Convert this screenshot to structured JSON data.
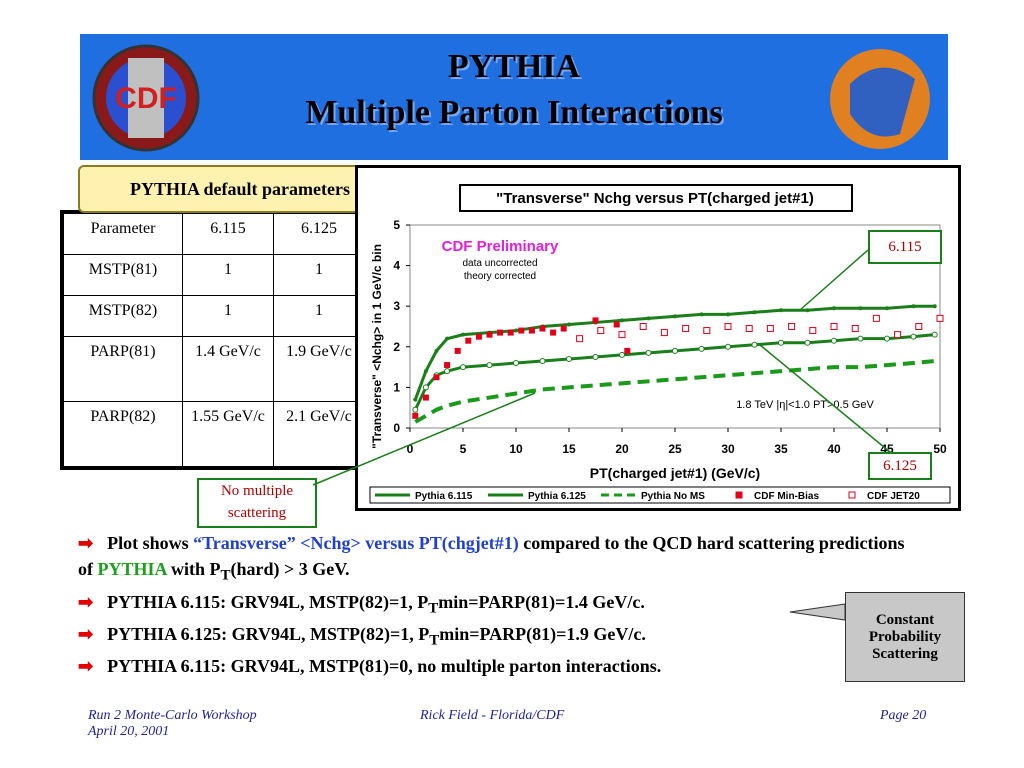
{
  "header": {
    "title": "PYTHIA",
    "subtitle": "Multiple Parton Interactions"
  },
  "table": {
    "caption": "PYTHIA default parameters",
    "rows": [
      [
        "Parameter",
        "6.115",
        "6.125"
      ],
      [
        "MSTP(81)",
        "1",
        "1"
      ],
      [
        "MSTP(82)",
        "1",
        "1"
      ],
      [
        "PARP(81)",
        "1.4 GeV/c",
        "1.9 GeV/c"
      ],
      [
        "PARP(82)",
        "1.55 GeV/c",
        "2.1 GeV/c"
      ]
    ]
  },
  "callouts": {
    "v115": "6.115",
    "v125": "6.125",
    "noms": "No multiple scattering",
    "const": "Constant Probability Scattering"
  },
  "bullets": [
    [
      "Plot shows ",
      "“Transverse” <Nchg> versus PT(chgjet#1)",
      " compared to the QCD hard scattering predictions of ",
      "PYTHIA",
      " with P",
      "T",
      "(hard) > 3 GeV."
    ],
    [
      "PYTHIA 6.115: GRV94L, MSTP(82)=1, P",
      "T",
      "min=PARP(81)=1.4 GeV/c."
    ],
    [
      "PYTHIA 6.125: GRV94L, MSTP(82)=1, P",
      "T",
      "min=PARP(81)=1.9 GeV/c."
    ],
    [
      "PYTHIA 6.115: GRV94L, MSTP(81)=0, no multiple parton interactions."
    ]
  ],
  "footer": {
    "left": "Run 2 Monte-Carlo Workshop April 20, 2001",
    "center": "Rick Field - Florida/CDF",
    "right": "Page 20"
  },
  "chart_data": {
    "type": "line",
    "title": "\"Transverse\" Nchg versus PT(charged jet#1)",
    "xlabel": "PT(charged jet#1)  (GeV/c)",
    "ylabel": "\"Transverse\" <Nchg> in 1 GeV/c bin",
    "annotations": [
      "CDF Preliminary",
      "data uncorrected",
      "theory corrected",
      "1.8 TeV |η|<1.0 PT>0.5 GeV"
    ],
    "xlim": [
      0,
      50
    ],
    "xticks": [
      0,
      5,
      10,
      15,
      20,
      25,
      30,
      35,
      40,
      45,
      50
    ],
    "ylim": [
      0,
      5
    ],
    "yticks": [
      0,
      1,
      2,
      3,
      4,
      5
    ],
    "series": [
      {
        "name": "Pythia 6.115",
        "color": "#1a7f1a",
        "style": "line-dot",
        "x": [
          0.5,
          1.5,
          2.5,
          3.5,
          5,
          7.5,
          10,
          12.5,
          15,
          17.5,
          20,
          22.5,
          25,
          27.5,
          30,
          32.5,
          35,
          37.5,
          40,
          42.5,
          45,
          47.5,
          49.5
        ],
        "values": [
          0.7,
          1.4,
          1.9,
          2.2,
          2.3,
          2.35,
          2.4,
          2.5,
          2.55,
          2.6,
          2.65,
          2.7,
          2.75,
          2.8,
          2.8,
          2.85,
          2.9,
          2.9,
          2.95,
          2.95,
          2.95,
          3.0,
          3.0
        ]
      },
      {
        "name": "Pythia 6.125",
        "color": "#1a7f1a",
        "style": "line-open",
        "x": [
          0.5,
          1.5,
          2.5,
          3.5,
          5,
          7.5,
          10,
          12.5,
          15,
          17.5,
          20,
          22.5,
          25,
          27.5,
          30,
          32.5,
          35,
          37.5,
          40,
          42.5,
          45,
          47.5,
          49.5
        ],
        "values": [
          0.45,
          1.0,
          1.3,
          1.4,
          1.5,
          1.55,
          1.6,
          1.65,
          1.7,
          1.75,
          1.8,
          1.85,
          1.9,
          1.95,
          2.0,
          2.05,
          2.1,
          2.1,
          2.15,
          2.2,
          2.2,
          2.25,
          2.3
        ]
      },
      {
        "name": "Pythia No MS",
        "color": "#1a9a1a",
        "style": "dash",
        "x": [
          0.5,
          1.5,
          2.5,
          3.5,
          5,
          7.5,
          10,
          12.5,
          15,
          17.5,
          20,
          22.5,
          25,
          27.5,
          30,
          32.5,
          35,
          37.5,
          40,
          42.5,
          45,
          47.5,
          49.5
        ],
        "values": [
          0.15,
          0.3,
          0.45,
          0.55,
          0.65,
          0.75,
          0.85,
          0.95,
          1.0,
          1.05,
          1.1,
          1.15,
          1.2,
          1.25,
          1.3,
          1.35,
          1.4,
          1.45,
          1.5,
          1.5,
          1.55,
          1.6,
          1.65
        ]
      },
      {
        "name": "CDF Min-Bias",
        "color": "#e0001a",
        "style": "square",
        "x": [
          0.5,
          1.5,
          2.5,
          3.5,
          4.5,
          5.5,
          6.5,
          7.5,
          8.5,
          9.5,
          10.5,
          11.5,
          12.5,
          13.5,
          14.5,
          17.5,
          19.5,
          20.5
        ],
        "values": [
          0.3,
          0.75,
          1.25,
          1.55,
          1.9,
          2.15,
          2.25,
          2.3,
          2.35,
          2.35,
          2.4,
          2.4,
          2.45,
          2.35,
          2.45,
          2.65,
          2.55,
          1.9
        ]
      },
      {
        "name": "CDF JET20",
        "color": "#e0001a",
        "style": "open-square",
        "x": [
          16,
          18,
          20,
          22,
          24,
          26,
          28,
          30,
          32,
          34,
          36,
          38,
          40,
          42,
          44,
          46,
          48,
          50
        ],
        "values": [
          2.2,
          2.4,
          2.3,
          2.5,
          2.35,
          2.45,
          2.4,
          2.5,
          2.45,
          2.45,
          2.5,
          2.4,
          2.5,
          2.45,
          2.7,
          2.3,
          2.5,
          2.7
        ]
      }
    ]
  }
}
